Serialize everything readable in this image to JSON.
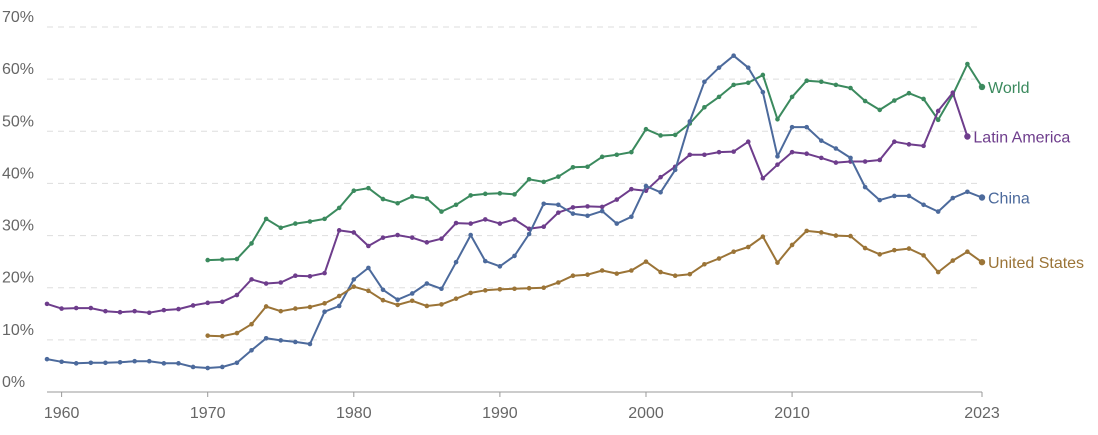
{
  "chart_data": {
    "type": "line",
    "title": "",
    "xlabel": "",
    "ylabel": "",
    "grid": true,
    "xlim": [
      1959,
      2023
    ],
    "ylim": [
      0,
      70
    ],
    "x_ticks": [
      {
        "value": 1960,
        "label": "1960"
      },
      {
        "value": 1970,
        "label": "1970"
      },
      {
        "value": 1980,
        "label": "1980"
      },
      {
        "value": 1990,
        "label": "1990"
      },
      {
        "value": 2000,
        "label": "2000"
      },
      {
        "value": 2010,
        "label": "2010"
      },
      {
        "value": 2023,
        "label": "2023"
      }
    ],
    "y_ticks": [
      {
        "value": 0,
        "label": "0%"
      },
      {
        "value": 10,
        "label": "10%"
      },
      {
        "value": 20,
        "label": "20%"
      },
      {
        "value": 30,
        "label": "30%"
      },
      {
        "value": 40,
        "label": "40%"
      },
      {
        "value": 50,
        "label": "50%"
      },
      {
        "value": 60,
        "label": "60%"
      },
      {
        "value": 70,
        "label": "70%"
      }
    ],
    "series": [
      {
        "name": "World",
        "color": "#3b8a5e",
        "start_year": 1970,
        "values": [
          25.3,
          25.4,
          25.5,
          28.5,
          33.2,
          31.5,
          32.3,
          32.7,
          33.2,
          35.3,
          38.6,
          39.1,
          37.0,
          36.2,
          37.5,
          37.1,
          34.6,
          35.9,
          37.7,
          38.0,
          38.1,
          37.9,
          40.8,
          40.3,
          41.3,
          43.1,
          43.2,
          45.1,
          45.5,
          46.0,
          50.4,
          49.2,
          49.3,
          51.5,
          54.6,
          56.6,
          58.9,
          59.3,
          60.8,
          52.3,
          56.6,
          59.7,
          59.5,
          58.9,
          58.3,
          55.8,
          54.1,
          55.9,
          57.3,
          56.2,
          52.2,
          57.0,
          62.9,
          58.5
        ]
      },
      {
        "name": "Latin America",
        "color": "#6e3d8c",
        "start_year": 1959,
        "values": [
          16.9,
          16.0,
          16.1,
          16.1,
          15.5,
          15.3,
          15.5,
          15.2,
          15.7,
          15.9,
          16.6,
          17.1,
          17.3,
          18.6,
          21.6,
          20.8,
          21.0,
          22.3,
          22.2,
          22.8,
          31.0,
          30.6,
          28.0,
          29.6,
          30.1,
          29.6,
          28.7,
          29.4,
          32.4,
          32.3,
          33.1,
          32.3,
          33.1,
          31.3,
          31.7,
          34.4,
          35.4,
          35.6,
          35.5,
          36.9,
          38.9,
          38.6,
          41.2,
          43.2,
          45.5,
          45.5,
          46.0,
          46.1,
          48.0,
          41.0,
          43.6,
          46.0,
          45.7,
          44.9,
          44.0,
          44.2,
          44.2,
          44.5,
          48.0,
          47.5,
          47.2,
          53.9,
          57.4,
          49.0
        ]
      },
      {
        "name": "China",
        "color": "#4c6a9c",
        "start_year": 1959,
        "values": [
          6.3,
          5.8,
          5.5,
          5.6,
          5.6,
          5.7,
          5.9,
          5.9,
          5.5,
          5.5,
          4.8,
          4.6,
          4.8,
          5.6,
          8.0,
          10.3,
          9.9,
          9.6,
          9.2,
          15.4,
          16.5,
          21.6,
          23.8,
          19.6,
          17.7,
          18.9,
          20.8,
          19.8,
          24.9,
          30.1,
          25.1,
          24.1,
          26.1,
          30.3,
          36.1,
          35.9,
          34.2,
          33.8,
          34.7,
          32.3,
          33.6,
          39.5,
          38.3,
          42.6,
          51.9,
          59.5,
          62.2,
          64.5,
          62.2,
          57.5,
          45.2,
          50.8,
          50.8,
          48.2,
          46.7,
          44.9,
          39.3,
          36.8,
          37.6,
          37.6,
          35.9,
          34.6,
          37.2,
          38.4,
          37.3
        ]
      },
      {
        "name": "United States",
        "color": "#9b7437",
        "start_year": 1970,
        "values": [
          10.8,
          10.7,
          11.3,
          13.0,
          16.4,
          15.5,
          16.0,
          16.3,
          17.0,
          18.4,
          20.2,
          19.4,
          17.6,
          16.7,
          17.5,
          16.5,
          16.8,
          17.9,
          19.0,
          19.5,
          19.7,
          19.8,
          19.9,
          20.0,
          21.0,
          22.3,
          22.5,
          23.3,
          22.7,
          23.3,
          25.0,
          23.0,
          22.3,
          22.6,
          24.5,
          25.6,
          26.9,
          27.8,
          29.8,
          24.8,
          28.2,
          30.9,
          30.6,
          30.0,
          29.9,
          27.6,
          26.4,
          27.2,
          27.5,
          26.2,
          23.0,
          25.2,
          26.9,
          24.9
        ]
      }
    ]
  }
}
